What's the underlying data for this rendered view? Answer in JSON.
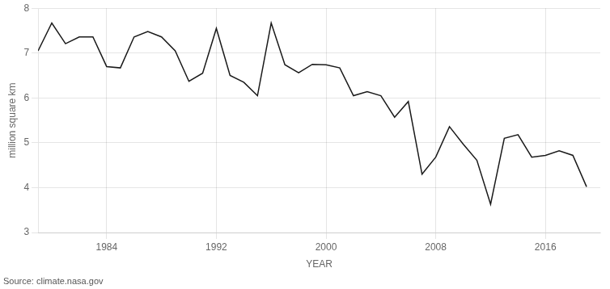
{
  "chart_data": {
    "type": "line",
    "x": [
      1979,
      1980,
      1981,
      1982,
      1983,
      1984,
      1985,
      1986,
      1987,
      1988,
      1989,
      1990,
      1991,
      1992,
      1993,
      1994,
      1995,
      1996,
      1997,
      1998,
      1999,
      2000,
      2001,
      2002,
      2003,
      2004,
      2005,
      2006,
      2007,
      2008,
      2009,
      2010,
      2011,
      2012,
      2013,
      2014,
      2015,
      2016,
      2017,
      2018,
      2019
    ],
    "values": [
      7.05,
      7.67,
      7.21,
      7.36,
      7.36,
      6.7,
      6.67,
      7.36,
      7.48,
      7.36,
      7.05,
      6.37,
      6.55,
      7.55,
      6.5,
      6.35,
      6.05,
      7.67,
      6.74,
      6.56,
      6.75,
      6.74,
      6.67,
      6.05,
      6.14,
      6.05,
      5.57,
      5.92,
      4.3,
      4.68,
      5.36,
      4.97,
      4.61,
      3.63,
      5.1,
      5.18,
      4.68,
      4.72,
      4.82,
      4.72,
      4.02
    ],
    "color": "#1a1a1a",
    "x_label": "YEAR",
    "y_label": "million square km",
    "annotation": "Source: climate.nasa.gov",
    "xlim": [
      1979,
      2020
    ],
    "xticks": [
      1984,
      1992,
      2000,
      2008,
      2016
    ],
    "ylim": [
      3,
      8
    ],
    "yticks": [
      3,
      4,
      5,
      6,
      7,
      8
    ],
    "grid": true
  }
}
